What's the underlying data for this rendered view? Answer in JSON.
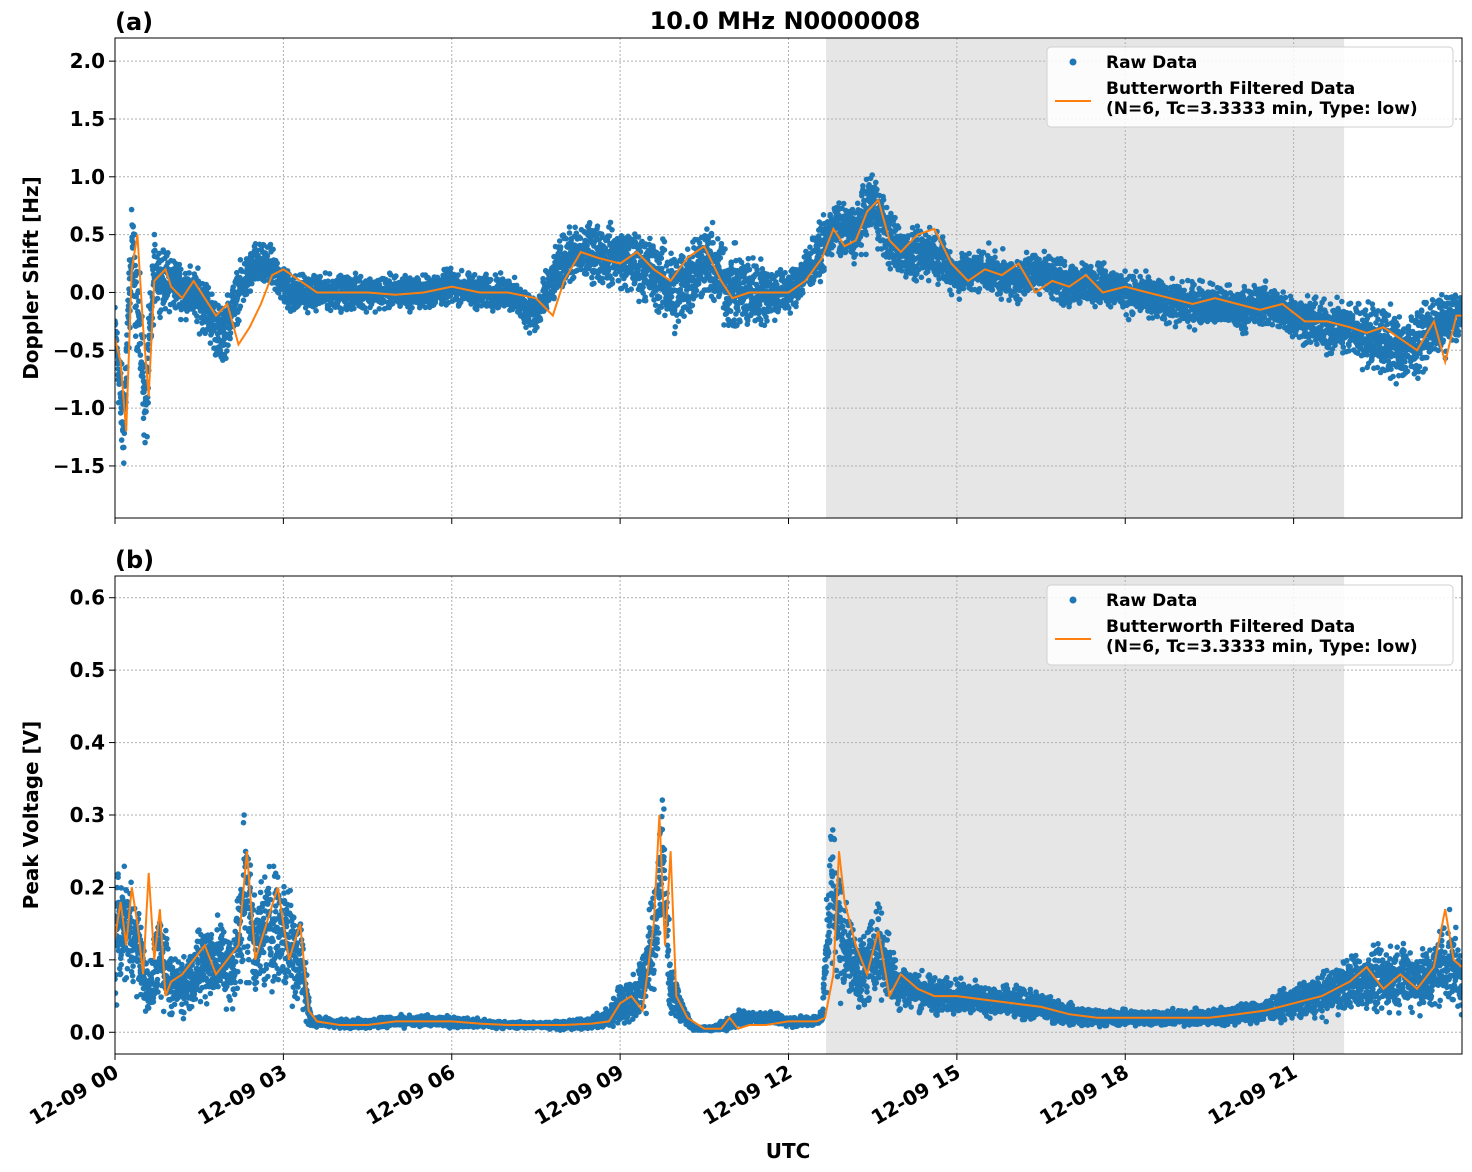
{
  "figure": {
    "title": "10.0 MHz N0000008",
    "xlabel": "UTC"
  },
  "colors": {
    "raw": "#1f77b4",
    "filtered": "#ff7f0e",
    "shade": "#e6e6e6",
    "grid": "#b0b0b0"
  },
  "chart_data": [
    {
      "type": "scatter",
      "panel_label": "(a)",
      "title": "10.0 MHz N0000008",
      "xlabel": "",
      "ylabel": "Doppler Shift [Hz]",
      "xlim": [
        0,
        24
      ],
      "ylim": [
        -1.95,
        2.2
      ],
      "yticks": [
        -1.5,
        -1.0,
        -0.5,
        0.0,
        0.5,
        1.0,
        1.5,
        2.0
      ],
      "ytick_labels": [
        "−1.5",
        "−1.0",
        "−0.5",
        "0.0",
        "0.5",
        "1.0",
        "1.5",
        "2.0"
      ],
      "grid": true,
      "shaded_region_hours": [
        12.67,
        21.9
      ],
      "legend": {
        "placement": "top-right",
        "entries": [
          "Raw Data",
          "Butterworth Filtered Data",
          "(N=6, Tc=3.3333 min, Type: low)"
        ]
      },
      "series": [
        {
          "name": "Raw Data",
          "kind": "points",
          "x": [
            0,
            0.15,
            0.3,
            0.45,
            0.55,
            0.7,
            0.85,
            1.0,
            1.3,
            1.6,
            1.9,
            2.2,
            2.5,
            2.8,
            3.1,
            3.5,
            4.0,
            4.5,
            5.0,
            5.5,
            6.0,
            6.5,
            7.0,
            7.5,
            8.0,
            8.5,
            9.0,
            9.5,
            10.0,
            10.5,
            11.0,
            11.5,
            12.0,
            12.5,
            12.8,
            13.2,
            13.5,
            13.8,
            14.2,
            14.6,
            15.0,
            15.5,
            16.0,
            16.5,
            17.0,
            17.5,
            18.0,
            18.5,
            19.0,
            19.5,
            20.0,
            20.5,
            21.0,
            21.5,
            22.0,
            22.5,
            23.0,
            23.5,
            24.0
          ],
          "y": [
            -0.3,
            -1.2,
            0.4,
            -0.4,
            -1.0,
            0.2,
            0.1,
            0.1,
            0.0,
            -0.1,
            -0.4,
            0.0,
            0.25,
            0.2,
            0.0,
            0.0,
            0.0,
            0.0,
            0.0,
            0.0,
            0.05,
            0.0,
            0.0,
            -0.2,
            0.3,
            0.35,
            0.3,
            0.2,
            0.0,
            0.3,
            0.0,
            0.0,
            0.0,
            0.3,
            0.55,
            0.5,
            0.8,
            0.45,
            0.3,
            0.35,
            0.15,
            0.2,
            0.1,
            0.2,
            0.05,
            0.1,
            0.0,
            -0.05,
            -0.1,
            -0.1,
            -0.15,
            -0.1,
            -0.2,
            -0.3,
            -0.3,
            -0.4,
            -0.5,
            -0.3,
            -0.2
          ],
          "y_spread": [
            0.3,
            0.6,
            0.5,
            0.6,
            0.7,
            0.4,
            0.35,
            0.35,
            0.3,
            0.35,
            0.35,
            0.3,
            0.25,
            0.25,
            0.25,
            0.2,
            0.2,
            0.2,
            0.2,
            0.2,
            0.2,
            0.2,
            0.2,
            0.25,
            0.3,
            0.35,
            0.35,
            0.4,
            0.5,
            0.45,
            0.5,
            0.4,
            0.25,
            0.3,
            0.3,
            0.35,
            0.4,
            0.35,
            0.3,
            0.3,
            0.25,
            0.25,
            0.25,
            0.25,
            0.25,
            0.25,
            0.25,
            0.25,
            0.25,
            0.25,
            0.25,
            0.25,
            0.25,
            0.3,
            0.35,
            0.4,
            0.4,
            0.35,
            0.3
          ]
        },
        {
          "name": "Butterworth Filtered Data",
          "kind": "line",
          "x": [
            0,
            0.1,
            0.2,
            0.3,
            0.4,
            0.5,
            0.6,
            0.7,
            0.8,
            0.9,
            1.0,
            1.2,
            1.4,
            1.6,
            1.8,
            2.0,
            2.2,
            2.4,
            2.6,
            2.8,
            3.0,
            3.3,
            3.6,
            4.0,
            4.5,
            5.0,
            5.5,
            6.0,
            6.5,
            7.0,
            7.5,
            7.8,
            8.0,
            8.3,
            8.6,
            9.0,
            9.3,
            9.6,
            9.9,
            10.2,
            10.5,
            10.8,
            11.0,
            11.3,
            11.6,
            12.0,
            12.3,
            12.6,
            12.8,
            13.0,
            13.2,
            13.4,
            13.6,
            13.8,
            14.0,
            14.3,
            14.6,
            14.9,
            15.2,
            15.5,
            15.8,
            16.1,
            16.4,
            16.7,
            17.0,
            17.3,
            17.6,
            18.0,
            18.4,
            18.8,
            19.2,
            19.6,
            20.0,
            20.4,
            20.8,
            21.2,
            21.6,
            22.0,
            22.3,
            22.6,
            22.9,
            23.2,
            23.5,
            23.7,
            23.9,
            24.0
          ],
          "y": [
            -0.4,
            -0.6,
            -1.2,
            0.2,
            0.5,
            -0.3,
            -0.9,
            0.1,
            0.15,
            0.2,
            0.05,
            -0.05,
            0.1,
            -0.05,
            -0.2,
            -0.1,
            -0.45,
            -0.3,
            -0.1,
            0.15,
            0.2,
            0.1,
            0.0,
            0.0,
            0.0,
            -0.02,
            0.0,
            0.05,
            0.0,
            0.0,
            -0.05,
            -0.2,
            0.1,
            0.35,
            0.3,
            0.25,
            0.35,
            0.2,
            0.1,
            0.3,
            0.4,
            0.1,
            -0.05,
            0.0,
            0.0,
            0.0,
            0.1,
            0.3,
            0.55,
            0.4,
            0.45,
            0.7,
            0.8,
            0.45,
            0.35,
            0.5,
            0.55,
            0.25,
            0.1,
            0.2,
            0.15,
            0.25,
            0.0,
            0.1,
            0.05,
            0.15,
            0.0,
            0.05,
            0.0,
            -0.05,
            -0.1,
            -0.05,
            -0.1,
            -0.15,
            -0.1,
            -0.25,
            -0.25,
            -0.3,
            -0.35,
            -0.3,
            -0.4,
            -0.5,
            -0.25,
            -0.6,
            -0.2,
            -0.2
          ]
        }
      ]
    },
    {
      "type": "scatter",
      "panel_label": "(b)",
      "title": "",
      "xlabel": "UTC",
      "ylabel": "Peak Voltage [V]",
      "xlim": [
        0,
        24
      ],
      "ylim": [
        -0.03,
        0.63
      ],
      "yticks": [
        0.0,
        0.1,
        0.2,
        0.3,
        0.4,
        0.5,
        0.6
      ],
      "ytick_labels": [
        "0.0",
        "0.1",
        "0.2",
        "0.3",
        "0.4",
        "0.5",
        "0.6"
      ],
      "xticks": [
        0,
        3,
        6,
        9,
        12,
        15,
        18,
        21
      ],
      "xtick_labels": [
        "12-09 00",
        "12-09 03",
        "12-09 06",
        "12-09 09",
        "12-09 12",
        "12-09 15",
        "12-09 18",
        "12-09 21"
      ],
      "grid": true,
      "shaded_region_hours": [
        12.67,
        21.9
      ],
      "legend": {
        "placement": "top-right",
        "entries": [
          "Raw Data",
          "Butterworth Filtered Data",
          "(N=6, Tc=3.3333 min, Type: low)"
        ]
      },
      "series": [
        {
          "name": "Raw Data",
          "kind": "points",
          "x": [
            0,
            0.2,
            0.4,
            0.6,
            0.8,
            1.0,
            1.3,
            1.6,
            1.9,
            2.1,
            2.3,
            2.5,
            2.8,
            3.1,
            3.3,
            3.5,
            4.0,
            4.5,
            5.0,
            5.5,
            6.0,
            6.5,
            7.0,
            7.5,
            8.0,
            8.5,
            8.8,
            9.0,
            9.3,
            9.6,
            9.75,
            9.9,
            10.1,
            10.3,
            10.6,
            10.9,
            11.1,
            11.4,
            11.7,
            12.0,
            12.4,
            12.6,
            12.75,
            12.9,
            13.1,
            13.3,
            13.6,
            13.9,
            14.2,
            14.6,
            15.0,
            15.5,
            16.0,
            16.5,
            17.0,
            17.5,
            18.0,
            18.5,
            19.0,
            19.5,
            20.0,
            20.5,
            21.0,
            21.5,
            22.0,
            22.5,
            23.0,
            23.4,
            23.7,
            24.0
          ],
          "y": [
            0.13,
            0.15,
            0.12,
            0.05,
            0.12,
            0.06,
            0.07,
            0.1,
            0.1,
            0.08,
            0.2,
            0.12,
            0.15,
            0.13,
            0.1,
            0.015,
            0.012,
            0.012,
            0.015,
            0.015,
            0.015,
            0.012,
            0.01,
            0.01,
            0.01,
            0.012,
            0.02,
            0.04,
            0.05,
            0.12,
            0.25,
            0.06,
            0.03,
            0.005,
            0.005,
            0.01,
            0.02,
            0.02,
            0.02,
            0.015,
            0.015,
            0.02,
            0.2,
            0.15,
            0.1,
            0.08,
            0.12,
            0.07,
            0.06,
            0.05,
            0.05,
            0.045,
            0.04,
            0.035,
            0.025,
            0.02,
            0.02,
            0.02,
            0.02,
            0.02,
            0.025,
            0.03,
            0.04,
            0.05,
            0.07,
            0.07,
            0.08,
            0.07,
            0.1,
            0.08
          ],
          "y_spread": [
            0.1,
            0.1,
            0.08,
            0.04,
            0.1,
            0.05,
            0.06,
            0.08,
            0.08,
            0.07,
            0.15,
            0.1,
            0.12,
            0.12,
            0.1,
            0.01,
            0.008,
            0.008,
            0.01,
            0.01,
            0.01,
            0.008,
            0.006,
            0.006,
            0.008,
            0.01,
            0.02,
            0.04,
            0.05,
            0.1,
            0.15,
            0.05,
            0.02,
            0.004,
            0.004,
            0.01,
            0.015,
            0.01,
            0.01,
            0.01,
            0.01,
            0.01,
            0.15,
            0.12,
            0.08,
            0.07,
            0.08,
            0.05,
            0.04,
            0.035,
            0.03,
            0.03,
            0.03,
            0.025,
            0.02,
            0.015,
            0.015,
            0.015,
            0.015,
            0.015,
            0.02,
            0.02,
            0.03,
            0.04,
            0.05,
            0.06,
            0.06,
            0.06,
            0.08,
            0.07
          ]
        },
        {
          "name": "Butterworth Filtered Data",
          "kind": "line",
          "x": [
            0,
            0.1,
            0.2,
            0.3,
            0.4,
            0.5,
            0.6,
            0.7,
            0.8,
            0.9,
            1.0,
            1.2,
            1.4,
            1.6,
            1.8,
            2.0,
            2.2,
            2.35,
            2.5,
            2.7,
            2.9,
            3.1,
            3.3,
            3.45,
            3.6,
            4.0,
            4.5,
            5.0,
            5.5,
            6.0,
            6.5,
            7.0,
            7.5,
            8.0,
            8.5,
            8.8,
            9.0,
            9.2,
            9.4,
            9.6,
            9.7,
            9.8,
            9.9,
            10.0,
            10.2,
            10.5,
            10.8,
            10.95,
            11.1,
            11.3,
            11.6,
            12.0,
            12.3,
            12.5,
            12.65,
            12.8,
            12.9,
            13.0,
            13.2,
            13.4,
            13.6,
            13.8,
            14.0,
            14.3,
            14.6,
            15.0,
            15.5,
            16.0,
            16.5,
            17.0,
            17.5,
            18.0,
            18.5,
            19.0,
            19.5,
            20.0,
            20.5,
            21.0,
            21.5,
            22.0,
            22.3,
            22.6,
            22.9,
            23.2,
            23.5,
            23.7,
            23.85,
            24.0
          ],
          "y": [
            0.13,
            0.18,
            0.12,
            0.2,
            0.15,
            0.08,
            0.22,
            0.1,
            0.17,
            0.05,
            0.07,
            0.08,
            0.1,
            0.12,
            0.08,
            0.1,
            0.12,
            0.25,
            0.1,
            0.15,
            0.2,
            0.1,
            0.15,
            0.03,
            0.015,
            0.01,
            0.01,
            0.015,
            0.015,
            0.015,
            0.012,
            0.01,
            0.01,
            0.01,
            0.012,
            0.015,
            0.04,
            0.05,
            0.03,
            0.15,
            0.3,
            0.12,
            0.25,
            0.05,
            0.02,
            0.005,
            0.005,
            0.02,
            0.005,
            0.01,
            0.01,
            0.015,
            0.015,
            0.015,
            0.02,
            0.08,
            0.25,
            0.18,
            0.12,
            0.08,
            0.14,
            0.05,
            0.08,
            0.06,
            0.05,
            0.05,
            0.045,
            0.04,
            0.035,
            0.025,
            0.02,
            0.02,
            0.02,
            0.02,
            0.02,
            0.025,
            0.03,
            0.04,
            0.05,
            0.07,
            0.09,
            0.06,
            0.08,
            0.06,
            0.09,
            0.17,
            0.1,
            0.09
          ]
        }
      ]
    }
  ]
}
